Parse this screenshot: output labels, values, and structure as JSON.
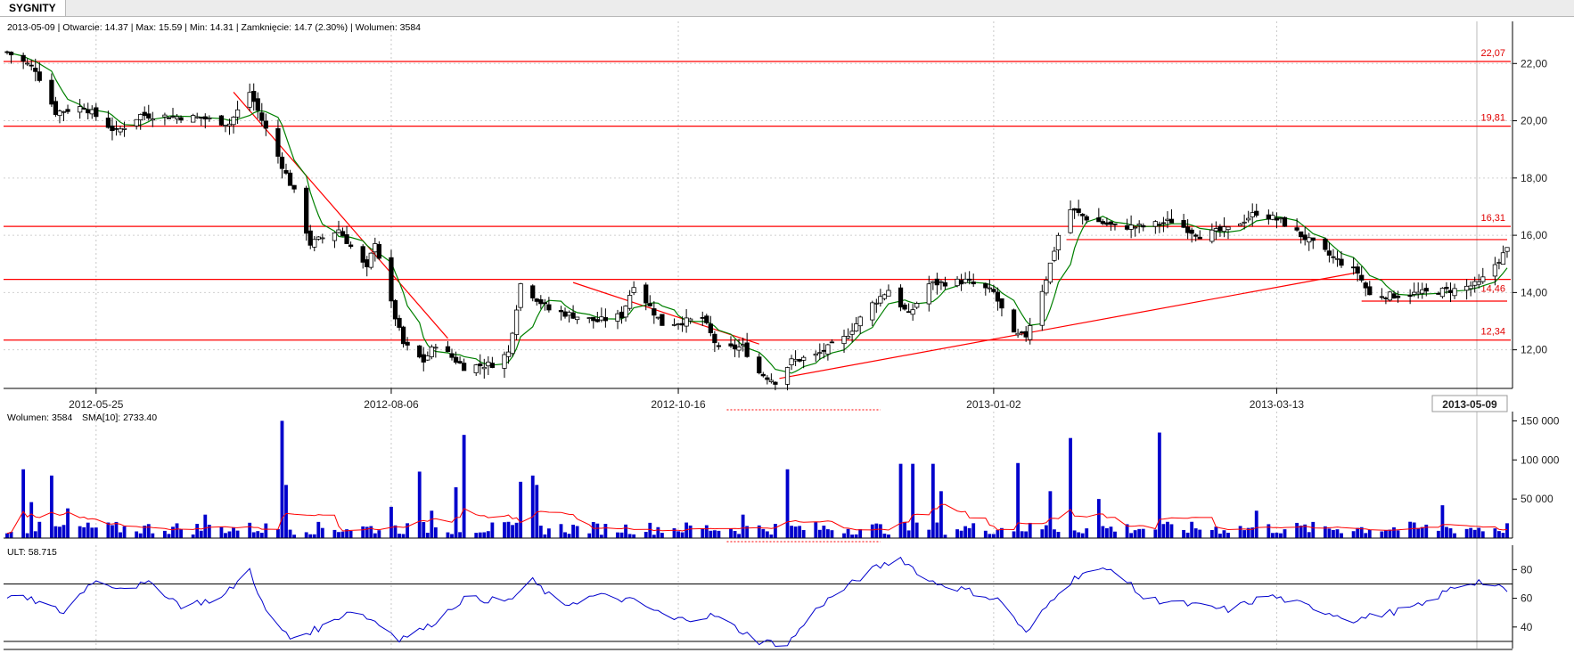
{
  "app": {
    "tab": "SYGNITY"
  },
  "header": {
    "info": "2013-05-09 | Otwarcie: 14.37 | Max: 15.59 | Min: 14.31 | Zamknięcie: 14.7 (2.30%)  | Wolumen: 3584"
  },
  "colors": {
    "bull": "#ffffff",
    "bear": "#000000",
    "ma": "#008000",
    "levels": "#ff0000",
    "volume": "#0000cc",
    "sma": "#ff0000",
    "ult": "#0000cc"
  },
  "chart_data": [
    {
      "type": "candlestick",
      "title": "",
      "x_ticks": [
        "2012-05-25",
        "2012-08-06",
        "2012-10-16",
        "2013-01-02",
        "2013-03-13"
      ],
      "cursor_date": "2013-05-09",
      "ylim": [
        10.9,
        22.6
      ],
      "y_ticks": [
        "22,00",
        "20,00",
        "18,00",
        "16,00",
        "14,00",
        "12,00"
      ],
      "grid": true,
      "levels": [
        {
          "value": 22.07,
          "label": "22,07"
        },
        {
          "value": 19.81,
          "label": "19,81"
        },
        {
          "value": 16.31,
          "label": "16,31"
        },
        {
          "value": 14.46,
          "label": "14,46"
        },
        {
          "value": 12.34,
          "label": "12,34"
        }
      ],
      "trendlines": [
        {
          "from": [
            "2012-06-28",
            21.0
          ],
          "to": [
            "2012-08-20",
            12.4
          ]
        },
        {
          "from": [
            "2012-09-20",
            14.35
          ],
          "to": [
            "2012-11-05",
            12.2
          ]
        },
        {
          "from": [
            "2012-11-10",
            11.0
          ],
          "to": [
            "2013-04-02",
            14.7
          ]
        }
      ],
      "supports": [
        {
          "from": "2013-01-20",
          "to": "2013-05-09",
          "value": 15.85
        },
        {
          "from": "2013-04-03",
          "to": "2013-05-09",
          "value": 13.7
        }
      ],
      "keypoints": [
        [
          "2012-05-03",
          22.4
        ],
        [
          "2012-05-10",
          21.8
        ],
        [
          "2012-05-15",
          20.3
        ],
        [
          "2012-05-22",
          20.5
        ],
        [
          "2012-05-30",
          19.6
        ],
        [
          "2012-06-05",
          20.2
        ],
        [
          "2012-06-20",
          20.1
        ],
        [
          "2012-06-27",
          19.9
        ],
        [
          "2012-07-02",
          21.0
        ],
        [
          "2012-07-06",
          19.7
        ],
        [
          "2012-07-13",
          17.5
        ],
        [
          "2012-07-17",
          15.7
        ],
        [
          "2012-07-24",
          16.2
        ],
        [
          "2012-07-31",
          14.8
        ],
        [
          "2012-08-02",
          15.8
        ],
        [
          "2012-08-06",
          13.6
        ],
        [
          "2012-08-09",
          12.2
        ],
        [
          "2012-08-14",
          11.6
        ],
        [
          "2012-08-17",
          12.2
        ],
        [
          "2012-08-24",
          11.4
        ],
        [
          "2012-08-31",
          11.5
        ],
        [
          "2012-09-04",
          11.9
        ],
        [
          "2012-09-07",
          14.3
        ],
        [
          "2012-09-14",
          13.4
        ],
        [
          "2012-09-26",
          13.0
        ],
        [
          "2012-10-02",
          13.2
        ],
        [
          "2012-10-05",
          14.3
        ],
        [
          "2012-10-12",
          12.9
        ],
        [
          "2012-10-18",
          13.0
        ],
        [
          "2012-10-22",
          13.1
        ],
        [
          "2012-10-26",
          12.0
        ],
        [
          "2012-11-01",
          12.1
        ],
        [
          "2012-11-05",
          11.2
        ],
        [
          "2012-11-09",
          10.9
        ],
        [
          "2012-11-13",
          11.6
        ],
        [
          "2012-11-19",
          11.8
        ],
        [
          "2012-11-26",
          12.4
        ],
        [
          "2012-12-03",
          13.6
        ],
        [
          "2012-12-07",
          14.1
        ],
        [
          "2012-12-12",
          13.2
        ],
        [
          "2012-12-17",
          14.3
        ],
        [
          "2012-12-26",
          14.4
        ],
        [
          "2013-01-02",
          14.0
        ],
        [
          "2013-01-07",
          12.5
        ],
        [
          "2013-01-10",
          12.5
        ],
        [
          "2013-01-15",
          14.5
        ],
        [
          "2013-01-18",
          16.0
        ],
        [
          "2013-01-21",
          16.9
        ],
        [
          "2013-01-25",
          16.6
        ],
        [
          "2013-02-01",
          16.3
        ],
        [
          "2013-02-08",
          16.3
        ],
        [
          "2013-02-15",
          16.5
        ],
        [
          "2013-02-22",
          16.0
        ],
        [
          "2013-03-01",
          16.2
        ],
        [
          "2013-03-08",
          16.8
        ],
        [
          "2013-03-14",
          16.5
        ],
        [
          "2013-03-20",
          15.9
        ],
        [
          "2013-03-26",
          15.3
        ],
        [
          "2013-04-02",
          14.7
        ],
        [
          "2013-04-05",
          13.9
        ],
        [
          "2013-04-12",
          13.9
        ],
        [
          "2013-04-19",
          14.0
        ],
        [
          "2013-04-26",
          14.1
        ],
        [
          "2013-05-02",
          14.3
        ],
        [
          "2013-05-09",
          15.5
        ]
      ]
    },
    {
      "type": "bar",
      "legend": [
        "Wolumen: 3584",
        "SMA[10]: 2733.40"
      ],
      "ylim": [
        0,
        155000
      ],
      "y_ticks": [
        "150 000",
        "100 000",
        "50 000"
      ],
      "spikes": [
        [
          "2012-05-07",
          88000
        ],
        [
          "2012-05-09",
          46000
        ],
        [
          "2012-05-14",
          80000
        ],
        [
          "2012-05-18",
          38000
        ],
        [
          "2012-06-21",
          30000
        ],
        [
          "2012-07-10",
          150000
        ],
        [
          "2012-07-11",
          68000
        ],
        [
          "2012-08-06",
          40000
        ],
        [
          "2012-08-13",
          85000
        ],
        [
          "2012-08-16",
          35000
        ],
        [
          "2012-08-22",
          65000
        ],
        [
          "2012-08-24",
          132000
        ],
        [
          "2012-09-07",
          72000
        ],
        [
          "2012-09-10",
          80000
        ],
        [
          "2012-09-11",
          68000
        ],
        [
          "2012-11-01",
          30000
        ],
        [
          "2012-11-12",
          88000
        ],
        [
          "2012-12-10",
          95000
        ],
        [
          "2012-12-13",
          95000
        ],
        [
          "2012-12-18",
          95000
        ],
        [
          "2012-12-20",
          60000
        ],
        [
          "2013-01-08",
          96000
        ],
        [
          "2013-01-16",
          60000
        ],
        [
          "2013-01-21",
          128000
        ],
        [
          "2013-01-28",
          50000
        ],
        [
          "2013-02-12",
          135000
        ],
        [
          "2013-03-08",
          35000
        ],
        [
          "2013-04-23",
          42000
        ]
      ],
      "base_volume": 14000
    },
    {
      "type": "line",
      "legend": [
        "ULT: 58.715"
      ],
      "ylim": [
        25,
        92
      ],
      "y_ticks": [
        "80",
        "60",
        "40"
      ],
      "thresholds": [
        70,
        30
      ],
      "keypoints": [
        [
          "2012-05-03",
          62
        ],
        [
          "2012-05-10",
          58
        ],
        [
          "2012-05-17",
          50
        ],
        [
          "2012-05-24",
          72
        ],
        [
          "2012-05-31",
          68
        ],
        [
          "2012-06-08",
          70
        ],
        [
          "2012-06-15",
          55
        ],
        [
          "2012-06-25",
          60
        ],
        [
          "2012-07-02",
          80
        ],
        [
          "2012-07-06",
          50
        ],
        [
          "2012-07-12",
          32
        ],
        [
          "2012-07-20",
          40
        ],
        [
          "2012-07-27",
          52
        ],
        [
          "2012-08-02",
          44
        ],
        [
          "2012-08-08",
          32
        ],
        [
          "2012-08-15",
          40
        ],
        [
          "2012-08-24",
          60
        ],
        [
          "2012-09-04",
          58
        ],
        [
          "2012-09-10",
          72
        ],
        [
          "2012-09-17",
          55
        ],
        [
          "2012-09-26",
          62
        ],
        [
          "2012-10-05",
          58
        ],
        [
          "2012-10-15",
          45
        ],
        [
          "2012-10-25",
          48
        ],
        [
          "2012-11-05",
          30
        ],
        [
          "2012-11-12",
          28
        ],
        [
          "2012-11-20",
          55
        ],
        [
          "2012-12-03",
          80
        ],
        [
          "2012-12-10",
          88
        ],
        [
          "2012-12-17",
          72
        ],
        [
          "2012-12-27",
          65
        ],
        [
          "2013-01-04",
          58
        ],
        [
          "2013-01-10",
          35
        ],
        [
          "2013-01-18",
          65
        ],
        [
          "2013-01-24",
          78
        ],
        [
          "2013-02-01",
          80
        ],
        [
          "2013-02-08",
          60
        ],
        [
          "2013-02-18",
          56
        ],
        [
          "2013-03-01",
          52
        ],
        [
          "2013-03-11",
          62
        ],
        [
          "2013-03-20",
          55
        ],
        [
          "2013-04-01",
          45
        ],
        [
          "2013-04-10",
          50
        ],
        [
          "2013-04-18",
          55
        ],
        [
          "2013-04-26",
          68
        ],
        [
          "2013-05-02",
          72
        ],
        [
          "2013-05-09",
          65
        ]
      ]
    }
  ]
}
